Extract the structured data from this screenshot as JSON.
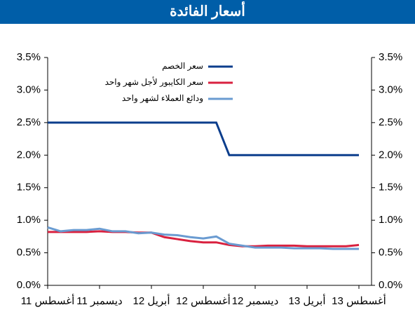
{
  "chart_data": {
    "type": "line",
    "title": "أسعار الفائدة",
    "categories": [
      "أغسطس 11",
      null,
      null,
      null,
      "ديسمبر 11",
      null,
      null,
      null,
      "أبريل 12",
      null,
      null,
      null,
      "أغسطس 12",
      null,
      null,
      null,
      "ديسمبر 12",
      null,
      null,
      null,
      "أبريل 13",
      null,
      null,
      null,
      "أغسطس 13"
    ],
    "series": [
      {
        "name": "سعر الخصم",
        "color": "#0b3d8c",
        "values": [
          2.5,
          2.5,
          2.5,
          2.5,
          2.5,
          2.5,
          2.5,
          2.5,
          2.5,
          2.5,
          2.5,
          2.5,
          2.5,
          2.5,
          2.0,
          2.0,
          2.0,
          2.0,
          2.0,
          2.0,
          2.0,
          2.0,
          2.0,
          2.0,
          2.0
        ]
      },
      {
        "name": "سعر الكايبور لأجل شهر واحد",
        "color": "#d9213f",
        "values": [
          0.82,
          0.82,
          0.82,
          0.82,
          0.83,
          0.82,
          0.82,
          0.81,
          0.81,
          0.74,
          0.71,
          0.68,
          0.66,
          0.66,
          0.62,
          0.6,
          0.6,
          0.61,
          0.61,
          0.61,
          0.6,
          0.6,
          0.6,
          0.6,
          0.62
        ]
      },
      {
        "name": "ودائع العملاء لشهر واحد",
        "color": "#6a9bd1",
        "values": [
          0.89,
          0.83,
          0.85,
          0.85,
          0.87,
          0.83,
          0.83,
          0.8,
          0.81,
          0.78,
          0.77,
          0.74,
          0.72,
          0.75,
          0.64,
          0.61,
          0.58,
          0.58,
          0.58,
          0.57,
          0.57,
          0.57,
          0.56,
          0.56,
          0.56
        ]
      }
    ],
    "ylim": [
      0,
      3.5
    ],
    "yticks": [
      {
        "value": 0,
        "label": "0.0%"
      },
      {
        "value": 0.5,
        "label": "0.5%"
      },
      {
        "value": 1,
        "label": "1.0%"
      },
      {
        "value": 1.5,
        "label": "1.5%"
      },
      {
        "value": 2,
        "label": "2.0%"
      },
      {
        "value": 2.5,
        "label": "2.5%"
      },
      {
        "value": 3,
        "label": "3.0%"
      },
      {
        "value": 3.5,
        "label": "3.5%"
      }
    ]
  }
}
